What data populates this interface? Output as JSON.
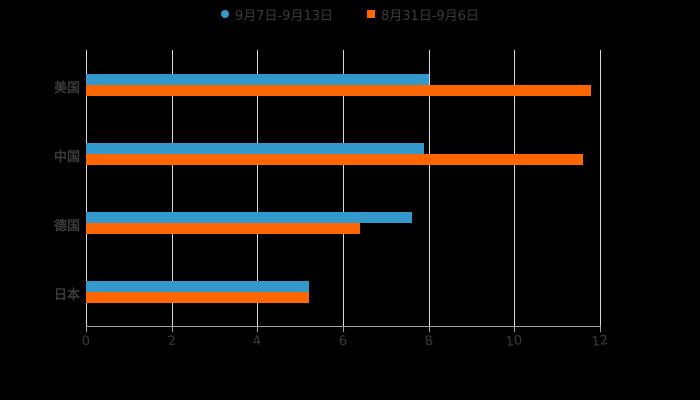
{
  "legend": [
    {
      "label": "9月7日-9月13日",
      "color": "#3399cc",
      "shape": "circle"
    },
    {
      "label": "8月31日-9月6日",
      "color": "#ff6600",
      "shape": "square"
    }
  ],
  "chart_data": {
    "type": "bar",
    "orientation": "horizontal",
    "title": "",
    "categories": [
      "美国",
      "中国",
      "德国",
      "日本"
    ],
    "series": [
      {
        "name": "9月7日-9月13日",
        "color": "#3399cc",
        "values": [
          8.0,
          7.9,
          7.6,
          5.2
        ]
      },
      {
        "name": "8月31日-9月6日",
        "color": "#ff6600",
        "values": [
          11.8,
          11.6,
          6.4,
          5.2
        ]
      }
    ],
    "xlabel": "",
    "ylabel": "",
    "xlim": [
      0,
      12
    ],
    "xticks": [
      0,
      2,
      4,
      6,
      8,
      10,
      12
    ],
    "grid": "vertical",
    "legend_position": "top"
  }
}
